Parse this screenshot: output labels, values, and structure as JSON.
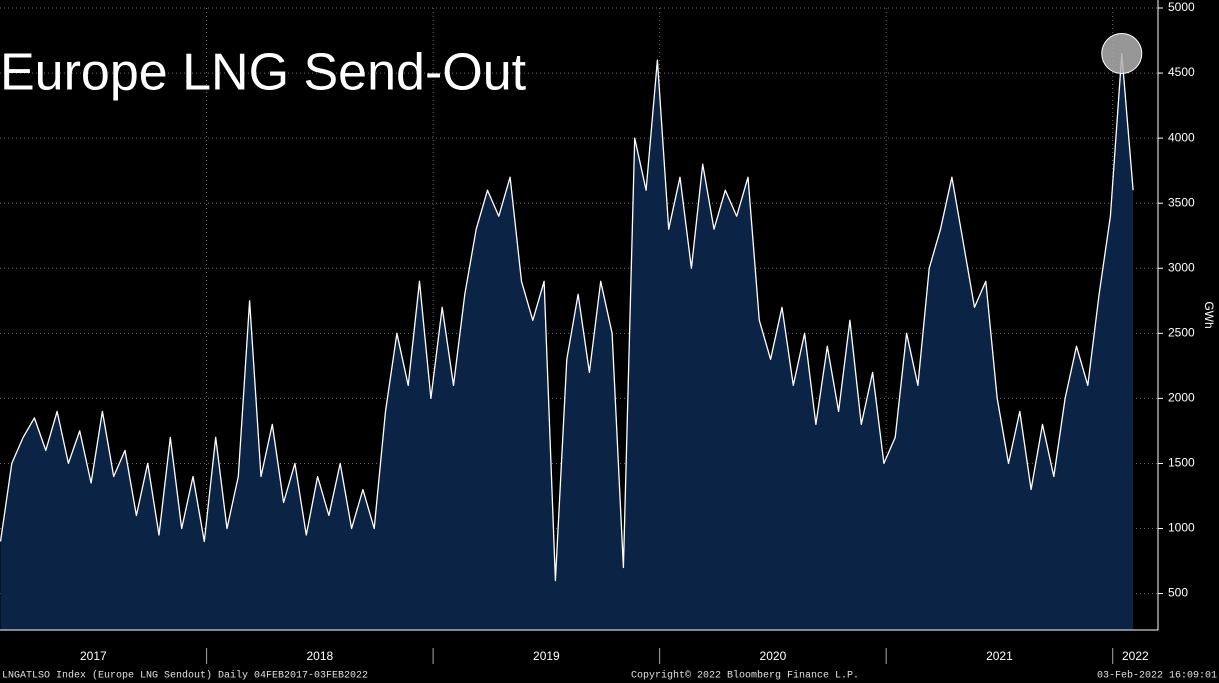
{
  "chart_data": {
    "type": "area",
    "title": "Europe LNG Send-Out",
    "y_label": "GWh",
    "footer_left": "LNGATLSO Index (Europe LNG Sendout)  Daily 04FEB2017-03FEB2022",
    "footer_center": "Copyright© 2022 Bloomberg Finance L.P.",
    "footer_right": "03-Feb-2022 16:09:01",
    "x": [
      2017.09,
      2017.14,
      2017.19,
      2017.24,
      2017.29,
      2017.34,
      2017.39,
      2017.44,
      2017.49,
      2017.54,
      2017.59,
      2017.64,
      2017.69,
      2017.74,
      2017.79,
      2017.84,
      2017.89,
      2017.94,
      2017.99,
      2018.04,
      2018.09,
      2018.14,
      2018.19,
      2018.24,
      2018.29,
      2018.34,
      2018.39,
      2018.44,
      2018.49,
      2018.54,
      2018.59,
      2018.64,
      2018.69,
      2018.74,
      2018.79,
      2018.84,
      2018.89,
      2018.94,
      2018.99,
      2019.04,
      2019.09,
      2019.14,
      2019.19,
      2019.24,
      2019.29,
      2019.34,
      2019.39,
      2019.44,
      2019.49,
      2019.54,
      2019.59,
      2019.64,
      2019.69,
      2019.74,
      2019.79,
      2019.84,
      2019.89,
      2019.94,
      2019.99,
      2020.04,
      2020.09,
      2020.14,
      2020.19,
      2020.24,
      2020.29,
      2020.34,
      2020.39,
      2020.44,
      2020.49,
      2020.54,
      2020.59,
      2020.64,
      2020.69,
      2020.74,
      2020.79,
      2020.84,
      2020.89,
      2020.94,
      2020.99,
      2021.04,
      2021.09,
      2021.14,
      2021.19,
      2021.24,
      2021.29,
      2021.34,
      2021.39,
      2021.44,
      2021.49,
      2021.54,
      2021.59,
      2021.64,
      2021.69,
      2021.74,
      2021.79,
      2021.84,
      2021.89,
      2021.94,
      2021.99,
      2022.04,
      2022.09
    ],
    "series": [
      {
        "name": "LNGATLSO Index",
        "color": "#ffffff",
        "fill": "#0b2344",
        "values": [
          900,
          1500,
          1700,
          1850,
          1600,
          1900,
          1500,
          1750,
          1350,
          1900,
          1400,
          1600,
          1100,
          1500,
          950,
          1700,
          1000,
          1400,
          900,
          1700,
          1000,
          1400,
          2750,
          1400,
          1800,
          1200,
          1500,
          950,
          1400,
          1100,
          1500,
          1000,
          1300,
          1000,
          1900,
          2500,
          2100,
          2900,
          2000,
          2700,
          2100,
          2800,
          3300,
          3600,
          3400,
          3700,
          2900,
          2600,
          2900,
          600,
          2300,
          2800,
          2200,
          2900,
          2500,
          700,
          4000,
          3600,
          4600,
          3300,
          3700,
          3000,
          3800,
          3300,
          3600,
          3400,
          3700,
          2600,
          2300,
          2700,
          2100,
          2500,
          1800,
          2400,
          1900,
          2600,
          1800,
          2200,
          1500,
          1700,
          2500,
          2100,
          3000,
          3300,
          3700,
          3200,
          2700,
          2900,
          2000,
          1500,
          1900,
          1300,
          1800,
          1400,
          2000,
          2400,
          2100,
          2800,
          3400,
          4650,
          3600
        ]
      }
    ],
    "xlim": [
      2017.088,
      2022.2
    ],
    "xticks": [
      {
        "value": 2017.5,
        "label": "2017"
      },
      {
        "value": 2018.5,
        "label": "2018"
      },
      {
        "value": 2019.5,
        "label": "2019"
      },
      {
        "value": 2020.5,
        "label": "2020"
      },
      {
        "value": 2021.5,
        "label": "2021"
      },
      {
        "value": 2022.1,
        "label": "2022"
      }
    ],
    "ylim": [
      220,
      5000
    ],
    "yticks": [
      500,
      1000,
      1500,
      2000,
      2500,
      3000,
      3500,
      4000,
      4500,
      5000
    ],
    "grid": true
  }
}
